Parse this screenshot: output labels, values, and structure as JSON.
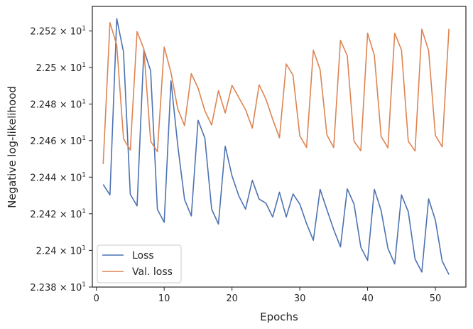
{
  "chart_data": {
    "type": "line",
    "xlabel": "Epochs",
    "ylabel": "Negative log-likelihood",
    "xlim": [
      -0.6,
      54.5
    ],
    "ylim": [
      22.38,
      22.5335
    ],
    "yscale": "log",
    "grid": false,
    "legend_position": "lower left",
    "xticks": [
      0,
      10,
      20,
      30,
      40,
      50
    ],
    "xtick_labels": [
      "0",
      "10",
      "20",
      "30",
      "40",
      "50"
    ],
    "yticks": [
      22.38,
      22.4,
      22.42,
      22.44,
      22.46,
      22.48,
      22.5,
      22.52
    ],
    "ytick_labels": [
      {
        "mantissa": "2.238",
        "exp": "1"
      },
      {
        "mantissa": "2.24",
        "exp": "1"
      },
      {
        "mantissa": "2.242",
        "exp": "1"
      },
      {
        "mantissa": "2.244",
        "exp": "1"
      },
      {
        "mantissa": "2.246",
        "exp": "1"
      },
      {
        "mantissa": "2.248",
        "exp": "1"
      },
      {
        "mantissa": "2.25",
        "exp": "1"
      },
      {
        "mantissa": "2.252",
        "exp": "1"
      }
    ],
    "x": [
      1,
      2,
      3,
      4,
      5,
      6,
      7,
      8,
      9,
      10,
      11,
      12,
      13,
      14,
      15,
      16,
      17,
      18,
      19,
      20,
      21,
      22,
      23,
      24,
      25,
      26,
      27,
      28,
      29,
      30,
      31,
      32,
      33,
      34,
      35,
      36,
      37,
      38,
      39,
      40,
      41,
      42,
      43,
      44,
      45,
      46,
      47,
      48,
      49,
      50,
      51,
      52
    ],
    "series": [
      {
        "name": "Loss",
        "color": "#4c72b0",
        "values": [
          22.436,
          22.4303,
          22.5268,
          22.5085,
          22.4306,
          22.4243,
          22.5096,
          22.4982,
          22.4224,
          22.4153,
          22.4927,
          22.4574,
          22.4278,
          22.4188,
          22.4711,
          22.4613,
          22.4225,
          22.4144,
          22.4569,
          22.4407,
          22.4298,
          22.4225,
          22.4383,
          22.428,
          22.4258,
          22.4182,
          22.4318,
          22.4182,
          22.4308,
          22.4253,
          22.4146,
          22.4055,
          22.4333,
          22.4222,
          22.4114,
          22.4019,
          22.4336,
          22.4253,
          22.4018,
          22.3945,
          22.4333,
          22.4217,
          22.4011,
          22.3926,
          22.4303,
          22.4211,
          22.3953,
          22.3882,
          22.4281,
          22.4165,
          22.3942,
          22.3868
        ]
      },
      {
        "name": "Val. loss",
        "color": "#dd8452",
        "values": [
          22.4471,
          22.5246,
          22.5123,
          22.461,
          22.4548,
          22.5197,
          22.5102,
          22.4596,
          22.4539,
          22.5112,
          22.4972,
          22.4773,
          22.4682,
          22.4966,
          22.4887,
          22.4763,
          22.4685,
          22.4873,
          22.4751,
          22.4902,
          22.4836,
          22.4769,
          22.4668,
          22.4905,
          22.4827,
          22.4717,
          22.4615,
          22.5019,
          22.4958,
          22.4626,
          22.4562,
          22.5095,
          22.4988,
          22.4631,
          22.4562,
          22.5149,
          22.5065,
          22.4596,
          22.4544,
          22.5188,
          22.5066,
          22.4622,
          22.456,
          22.5188,
          22.5096,
          22.4596,
          22.4543,
          22.521,
          22.5093,
          22.4628,
          22.4566,
          22.5212
        ]
      }
    ]
  }
}
